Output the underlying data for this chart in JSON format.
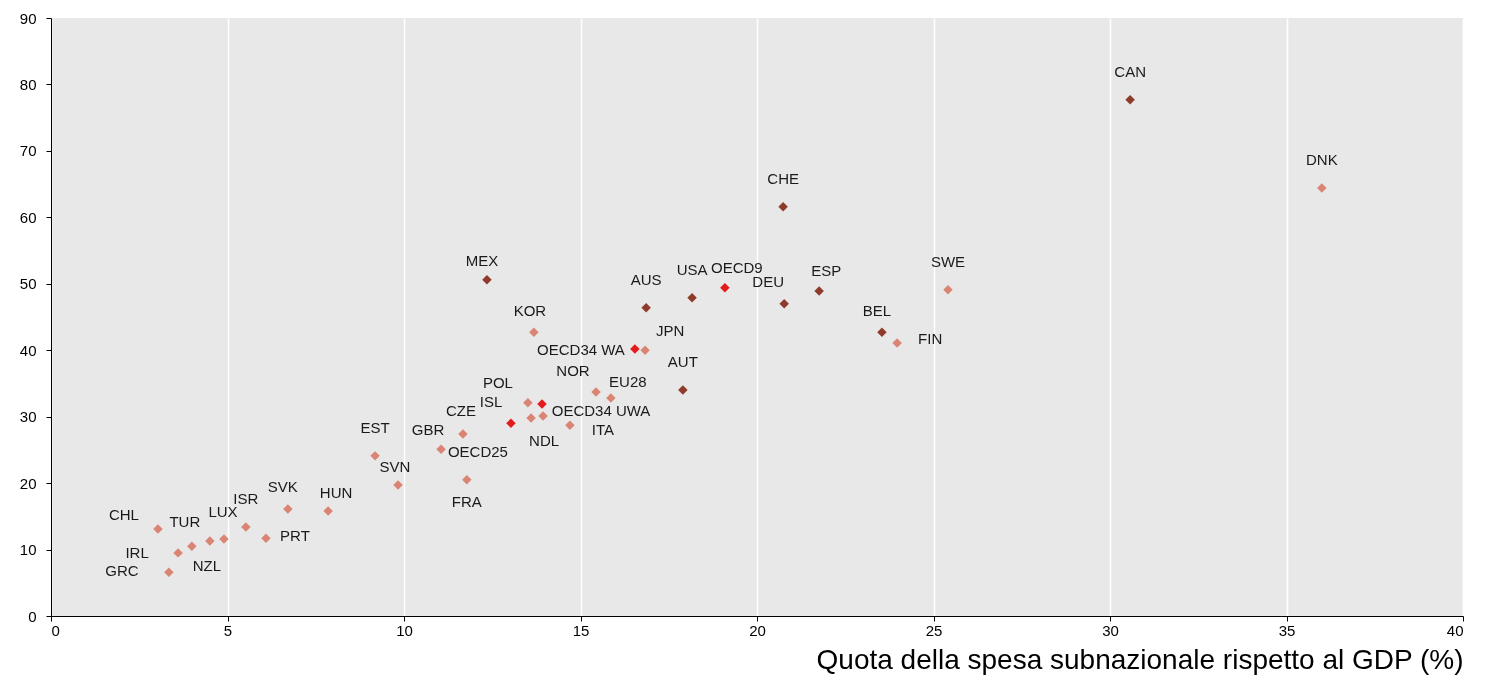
{
  "chart_data": {
    "type": "scatter",
    "xlabel": "Quota della spesa subnazionale rispetto al GDP (%)",
    "xlim": [
      0,
      40
    ],
    "xticks": [
      0,
      5,
      10,
      15,
      20,
      25,
      30,
      35,
      40
    ],
    "ylim": [
      0,
      90
    ],
    "yticks": [
      0,
      10,
      20,
      30,
      40,
      50,
      60,
      70,
      80,
      90
    ],
    "grid": "x",
    "marker": "diamond",
    "series": [
      {
        "color": "#8e3b2c",
        "x": [
          30.57,
          20.74,
          12.35,
          18.16,
          21.76,
          20.77,
          16.86,
          23.54,
          17.9
        ],
        "values": [
          77.7,
          61.6,
          50.6,
          47.9,
          48.9,
          47.0,
          46.4,
          42.7,
          34.0
        ],
        "value_labels": [
          "CAN",
          "CHE",
          "MEX",
          "USA",
          "ESP",
          "DEU",
          "AUS",
          "BEL",
          "AUT"
        ]
      },
      {
        "color": "#e41a1c",
        "x": [
          19.09,
          16.54,
          13.91,
          13.03
        ],
        "values": [
          49.4,
          40.2,
          31.9,
          29.0
        ],
        "value_labels": [
          "OECD9",
          "OECD34 WA",
          "OECD34 UWA",
          "OECD25"
        ]
      },
      {
        "color": "#da8574",
        "x": [
          36.0,
          25.41,
          13.68,
          23.97,
          16.83,
          15.44,
          15.86,
          13.51,
          13.6,
          13.94,
          14.7,
          11.67,
          11.05,
          9.18,
          11.78,
          9.83,
          6.71,
          7.85,
          5.52,
          3.03,
          6.09,
          4.9,
          3.99,
          3.6,
          3.34,
          4.5
        ],
        "values": [
          64.4,
          49.1,
          42.7,
          41.1,
          40.0,
          33.7,
          32.8,
          32.1,
          29.8,
          30.1,
          28.7,
          27.4,
          25.1,
          24.1,
          20.5,
          19.7,
          16.1,
          15.8,
          13.4,
          13.1,
          11.7,
          11.6,
          10.5,
          9.5,
          6.6,
          11.3
        ],
        "value_labels": [
          "DNK",
          "SWE",
          "KOR",
          "FIN",
          "JPN",
          "NOR",
          "EU28",
          "POL",
          "ISL",
          "NDL",
          "ITA",
          "CZE",
          "GBR",
          "EST",
          "FRA",
          "SVN",
          "SVK",
          "HUN",
          "ISR",
          "CHL",
          "PRT",
          "LUX",
          "TUR",
          "IRL",
          "GRC",
          "NZL"
        ]
      }
    ]
  }
}
